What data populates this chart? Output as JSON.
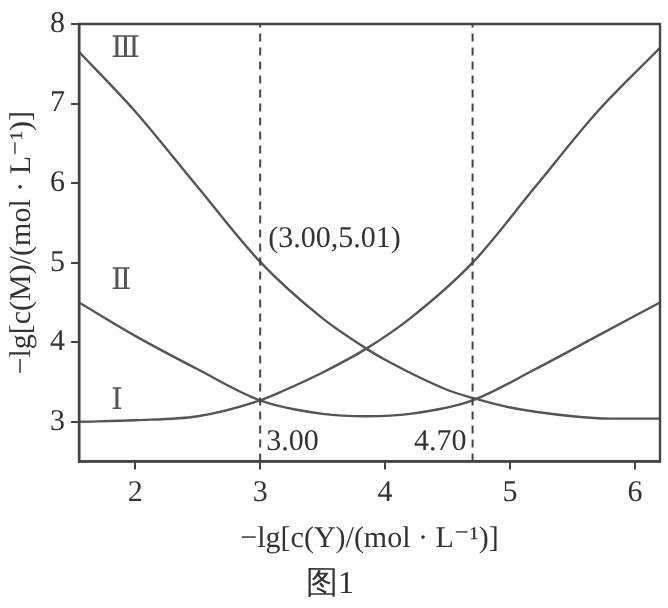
{
  "chart_data": {
    "type": "line",
    "title": "图1",
    "xlabel": "−lg[c(Y)/(mol · L⁻¹)]",
    "ylabel": "−lg[c(M)/(mol · L⁻¹)]",
    "xlim": [
      1.55,
      6.2
    ],
    "ylim": [
      2.5,
      8
    ],
    "xticks": [
      2,
      3,
      4,
      5,
      6
    ],
    "yticks": [
      3,
      4,
      5,
      6,
      7,
      8
    ],
    "grid": false,
    "legend": false,
    "marker": "none",
    "line_style": "solid",
    "series": [
      {
        "name": "Ⅰ",
        "color": "#555555",
        "x": [
          1.55,
          2,
          2.5,
          3,
          3.2,
          3.5,
          3.85,
          4.2,
          4.7,
          5.2,
          5.7,
          6.2
        ],
        "values": [
          3.0,
          3.02,
          3.07,
          3.27,
          3.4,
          3.62,
          3.92,
          4.3,
          5.0,
          5.95,
          6.9,
          7.7
        ]
      },
      {
        "name": "Ⅱ",
        "color": "#555555",
        "x": [
          1.55,
          2,
          2.5,
          3,
          3.5,
          3.85,
          4.2,
          4.7,
          5.2,
          5.7,
          6.2
        ],
        "values": [
          4.5,
          4.08,
          3.66,
          3.27,
          3.1,
          3.07,
          3.1,
          3.27,
          3.66,
          4.08,
          4.5
        ]
      },
      {
        "name": "Ⅲ",
        "color": "#555555",
        "x": [
          1.55,
          2,
          2.5,
          3,
          3.5,
          3.85,
          4,
          4.5,
          4.7,
          5,
          5.5,
          5.8,
          6.2
        ],
        "values": [
          7.65,
          6.9,
          5.95,
          5.01,
          4.3,
          3.92,
          3.78,
          3.4,
          3.3,
          3.18,
          3.07,
          3.04,
          3.04
        ]
      }
    ],
    "ref_lines": [
      {
        "axis": "x",
        "value": 3,
        "label": "3.00",
        "line_style": "dashed"
      },
      {
        "axis": "x",
        "value": 4.7,
        "label": "4.70",
        "line_style": "dashed"
      }
    ],
    "annotations": [
      {
        "text": "(3.00,5.01)",
        "x": 3,
        "y": 5.01
      }
    ]
  }
}
